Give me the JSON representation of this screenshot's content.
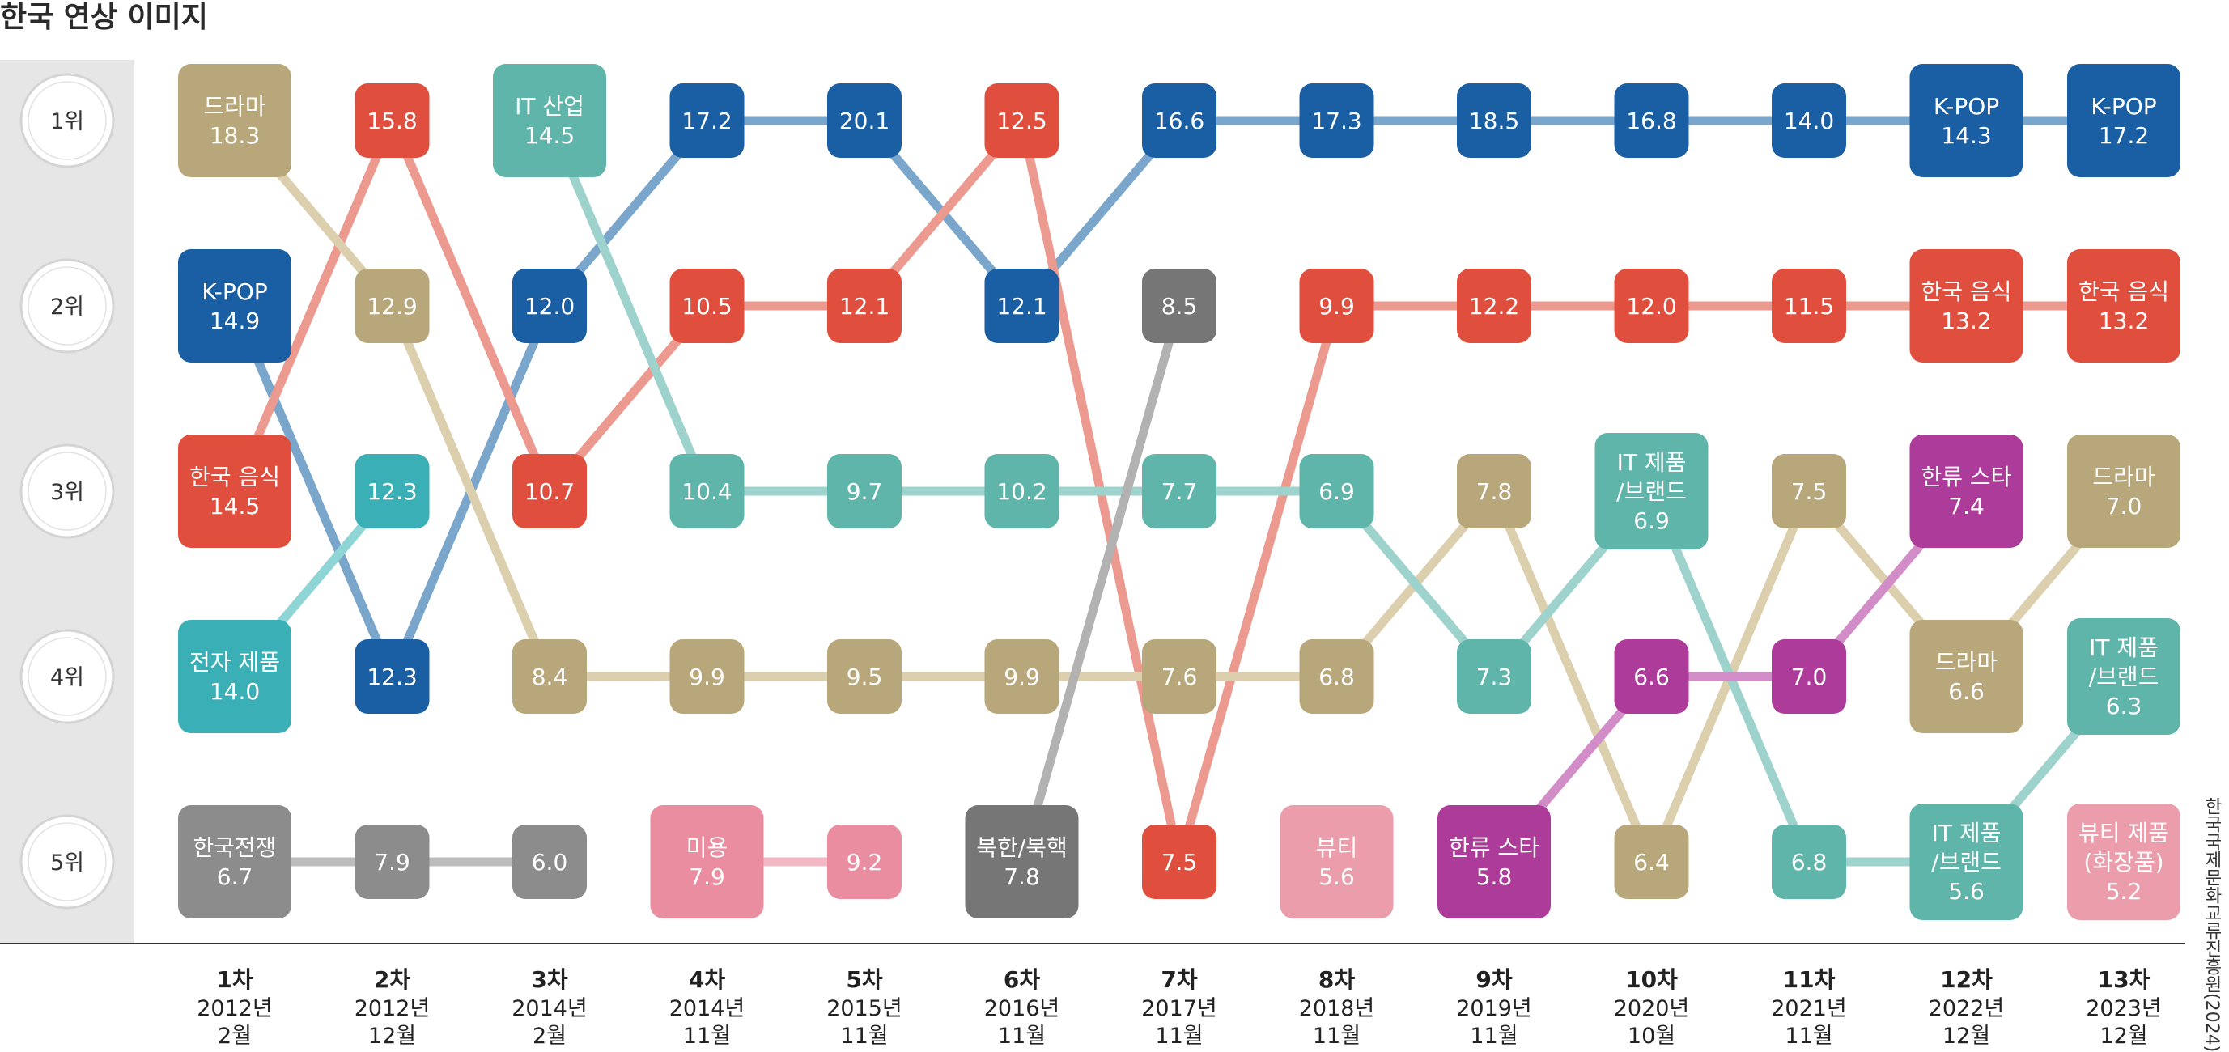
{
  "title": "한국 연상 이미지",
  "source": "한국국제문화교류진흥원(2024)",
  "chart_data": {
    "type": "bump",
    "rank_labels": [
      "1위",
      "2위",
      "3위",
      "4위",
      "5위"
    ],
    "rounds": [
      {
        "round": "1차",
        "year": "2012년",
        "month": "2월"
      },
      {
        "round": "2차",
        "year": "2012년",
        "month": "12월"
      },
      {
        "round": "3차",
        "year": "2014년",
        "month": "2월"
      },
      {
        "round": "4차",
        "year": "2014년",
        "month": "11월"
      },
      {
        "round": "5차",
        "year": "2015년",
        "month": "11월"
      },
      {
        "round": "6차",
        "year": "2016년",
        "month": "11월"
      },
      {
        "round": "7차",
        "year": "2017년",
        "month": "11월"
      },
      {
        "round": "8차",
        "year": "2018년",
        "month": "11월"
      },
      {
        "round": "9차",
        "year": "2019년",
        "month": "11월"
      },
      {
        "round": "10차",
        "year": "2020년",
        "month": "10월"
      },
      {
        "round": "11차",
        "year": "2021년",
        "month": "11월"
      },
      {
        "round": "12차",
        "year": "2022년",
        "month": "12월"
      },
      {
        "round": "13차",
        "year": "2023년",
        "month": "12월"
      }
    ],
    "series": [
      {
        "key": "kpop",
        "color": "#1a5fa3",
        "line": "#7aa6cc",
        "points": [
          {
            "r": 0,
            "rank": 2,
            "value": "14.9",
            "label": [
              "K-POP"
            ]
          },
          {
            "r": 1,
            "rank": 4,
            "value": "12.3"
          },
          {
            "r": 2,
            "rank": 2,
            "value": "12.0"
          },
          {
            "r": 3,
            "rank": 1,
            "value": "17.2"
          },
          {
            "r": 4,
            "rank": 1,
            "value": "20.1"
          },
          {
            "r": 5,
            "rank": 2,
            "value": "12.1"
          },
          {
            "r": 6,
            "rank": 1,
            "value": "16.6"
          },
          {
            "r": 7,
            "rank": 1,
            "value": "17.3"
          },
          {
            "r": 8,
            "rank": 1,
            "value": "18.5"
          },
          {
            "r": 9,
            "rank": 1,
            "value": "16.8"
          },
          {
            "r": 10,
            "rank": 1,
            "value": "14.0"
          },
          {
            "r": 11,
            "rank": 1,
            "value": "14.3",
            "label": [
              "K-POP"
            ]
          },
          {
            "r": 12,
            "rank": 1,
            "value": "17.2",
            "label": [
              "K-POP"
            ]
          }
        ]
      },
      {
        "key": "food",
        "color": "#e04f3e",
        "line": "#ec9a90",
        "points": [
          {
            "r": 0,
            "rank": 3,
            "value": "14.5",
            "label": [
              "한국 음식"
            ]
          },
          {
            "r": 1,
            "rank": 1,
            "value": "15.8"
          },
          {
            "r": 2,
            "rank": 3,
            "value": "10.7"
          },
          {
            "r": 3,
            "rank": 2,
            "value": "10.5"
          },
          {
            "r": 4,
            "rank": 2,
            "value": "12.1"
          },
          {
            "r": 5,
            "rank": 1,
            "value": "12.5"
          },
          {
            "r": 6,
            "rank": 5,
            "value": "7.5"
          },
          {
            "r": 7,
            "rank": 2,
            "value": "9.9"
          },
          {
            "r": 8,
            "rank": 2,
            "value": "12.2"
          },
          {
            "r": 9,
            "rank": 2,
            "value": "12.0"
          },
          {
            "r": 10,
            "rank": 2,
            "value": "11.5"
          },
          {
            "r": 11,
            "rank": 2,
            "value": "13.2",
            "label": [
              "한국 음식"
            ]
          },
          {
            "r": 12,
            "rank": 2,
            "value": "13.2",
            "label": [
              "한국 음식"
            ]
          }
        ]
      },
      {
        "key": "drama",
        "color": "#b8a77a",
        "line": "#dccfae",
        "points": [
          {
            "r": 0,
            "rank": 1,
            "value": "18.3",
            "label": [
              "드라마"
            ]
          },
          {
            "r": 1,
            "rank": 2,
            "value": "12.9"
          },
          {
            "r": 2,
            "rank": 4,
            "value": "8.4"
          },
          {
            "r": 3,
            "rank": 4,
            "value": "9.9"
          },
          {
            "r": 4,
            "rank": 4,
            "value": "9.5"
          },
          {
            "r": 5,
            "rank": 4,
            "value": "9.9"
          },
          {
            "r": 6,
            "rank": 4,
            "value": "7.6"
          },
          {
            "r": 7,
            "rank": 4,
            "value": "6.8"
          },
          {
            "r": 8,
            "rank": 3,
            "value": "7.8"
          },
          {
            "r": 9,
            "rank": 5,
            "value": "6.4"
          },
          {
            "r": 10,
            "rank": 3,
            "value": "7.5"
          },
          {
            "r": 11,
            "rank": 4,
            "value": "6.6",
            "label": [
              "드라마"
            ]
          },
          {
            "r": 12,
            "rank": 3,
            "value": "7.0",
            "label": [
              "드라마"
            ]
          }
        ]
      },
      {
        "key": "itind",
        "color": "#5fb5aa",
        "line": "#9ed3cd",
        "points": [
          {
            "r": 2,
            "rank": 1,
            "value": "14.5",
            "label": [
              "IT 산업"
            ]
          },
          {
            "r": 3,
            "rank": 3,
            "value": "10.4"
          },
          {
            "r": 4,
            "rank": 3,
            "value": "9.7"
          },
          {
            "r": 5,
            "rank": 3,
            "value": "10.2"
          },
          {
            "r": 6,
            "rank": 3,
            "value": "7.7"
          },
          {
            "r": 7,
            "rank": 3,
            "value": "6.9"
          },
          {
            "r": 8,
            "rank": 4,
            "value": "7.3"
          },
          {
            "r": 9,
            "rank": 3,
            "value": "6.9",
            "label": [
              "IT 제품",
              "/브랜드"
            ]
          },
          {
            "r": 10,
            "rank": 5,
            "value": "6.8"
          },
          {
            "r": 11,
            "rank": 5,
            "value": "5.6",
            "label": [
              "IT 제품",
              "/브랜드"
            ]
          },
          {
            "r": 12,
            "rank": 4,
            "value": "6.3",
            "label": [
              "IT 제품",
              "/브랜드"
            ]
          }
        ]
      },
      {
        "key": "elec",
        "color": "#3aafb6",
        "line": "#8fd5d6",
        "points": [
          {
            "r": 0,
            "rank": 4,
            "value": "14.0",
            "label": [
              "전자 제품"
            ]
          },
          {
            "r": 1,
            "rank": 3,
            "value": "12.3"
          }
        ]
      },
      {
        "key": "war",
        "color": "#8c8c8c",
        "line": "#bdbdbd",
        "points": [
          {
            "r": 0,
            "rank": 5,
            "value": "6.7",
            "label": [
              "한국전쟁"
            ]
          },
          {
            "r": 1,
            "rank": 5,
            "value": "7.9"
          },
          {
            "r": 2,
            "rank": 5,
            "value": "6.0"
          }
        ]
      },
      {
        "key": "beauty",
        "color": "#ea8da0",
        "line": "#f2b8c4",
        "points": [
          {
            "r": 3,
            "rank": 5,
            "value": "7.9",
            "label": [
              "미용"
            ]
          },
          {
            "r": 4,
            "rank": 5,
            "value": "9.2"
          }
        ]
      },
      {
        "key": "north",
        "color": "#767676",
        "line": "#b2b2b2",
        "points": [
          {
            "r": 5,
            "rank": 5,
            "value": "7.8",
            "label": [
              "북한/북핵"
            ]
          },
          {
            "r": 6,
            "rank": 2,
            "value": "8.5"
          }
        ]
      },
      {
        "key": "beauty2",
        "color": "#ec9dab",
        "line": "#f2b8c4",
        "points": [
          {
            "r": 7,
            "rank": 5,
            "value": "5.6",
            "label": [
              "뷰티"
            ]
          }
        ]
      },
      {
        "key": "hallyu",
        "color": "#ad3b9a",
        "line": "#d28dc8",
        "points": [
          {
            "r": 8,
            "rank": 5,
            "value": "5.8",
            "label": [
              "한류 스타"
            ]
          },
          {
            "r": 9,
            "rank": 4,
            "value": "6.6"
          },
          {
            "r": 10,
            "rank": 4,
            "value": "7.0"
          },
          {
            "r": 11,
            "rank": 3,
            "value": "7.4",
            "label": [
              "한류 스타"
            ]
          }
        ]
      },
      {
        "key": "cosme",
        "color": "#ec9dab",
        "line": "#f2b8c4",
        "points": [
          {
            "r": 12,
            "rank": 5,
            "value": "5.2",
            "label": [
              "뷰티 제품",
              "(화장품)"
            ]
          }
        ]
      }
    ]
  }
}
